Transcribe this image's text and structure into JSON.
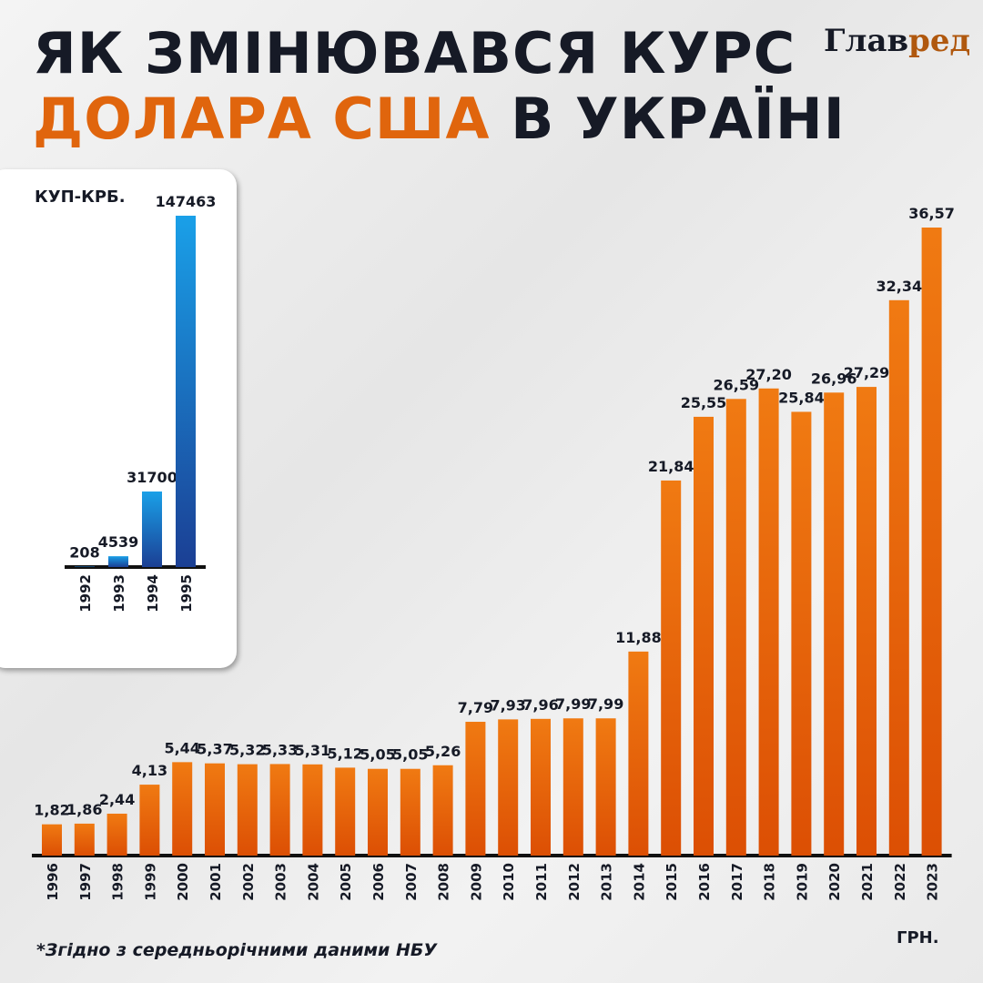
{
  "title_line1": "ЯК ЗМІНЮВАВСЯ КУРС",
  "title_line2_accent": "ДОЛАРА США",
  "title_line2_rest": " В УКРАЇНІ",
  "logo": {
    "part1": "Глав",
    "part2": "ред"
  },
  "footnote": "*Згідно з середньорічними даними НБУ",
  "colors": {
    "main_bars": "#e8650a",
    "inset_bars": "#1e6fc8",
    "accent": "#e0650d",
    "text": "#161a26"
  },
  "chart_data": [
    {
      "type": "bar",
      "unit_label": "ГРН.",
      "categories": [
        "1996",
        "1997",
        "1998",
        "1999",
        "2000",
        "2001",
        "2002",
        "2003",
        "2004",
        "2005",
        "2006",
        "2007",
        "2008",
        "2009",
        "2010",
        "2011",
        "2012",
        "2013",
        "2014",
        "2015",
        "2016",
        "2017",
        "2018",
        "2019",
        "2020",
        "2021",
        "2022",
        "2023"
      ],
      "values": [
        1.82,
        1.86,
        2.44,
        4.13,
        5.44,
        5.37,
        5.32,
        5.33,
        5.31,
        5.12,
        5.05,
        5.05,
        5.26,
        7.79,
        7.93,
        7.96,
        7.99,
        7.99,
        11.88,
        21.84,
        25.55,
        26.59,
        27.2,
        25.84,
        26.96,
        27.29,
        32.34,
        36.57
      ],
      "labels": [
        "1,82",
        "1,86",
        "2,44",
        "4,13",
        "5,44",
        "5,37",
        "5,32",
        "5,33",
        "5,31",
        "5,12",
        "5,05",
        "5,05",
        "5,26",
        "7,79",
        "7,93",
        "7,96",
        "7,99",
        "7,99",
        "11,88",
        "21,84",
        "25,55",
        "26,59",
        "27,20",
        "25,84",
        "26,96",
        "27,29",
        "32,34",
        "36,57"
      ],
      "ylim": [
        0,
        36.57
      ]
    },
    {
      "type": "bar",
      "unit_label": "КУП-КРБ.",
      "categories": [
        "1992",
        "1993",
        "1994",
        "1995"
      ],
      "values": [
        208,
        4539,
        31700,
        147463
      ],
      "labels": [
        "208",
        "4539",
        "31700",
        "147463"
      ],
      "ylim": [
        0,
        147463
      ]
    }
  ]
}
